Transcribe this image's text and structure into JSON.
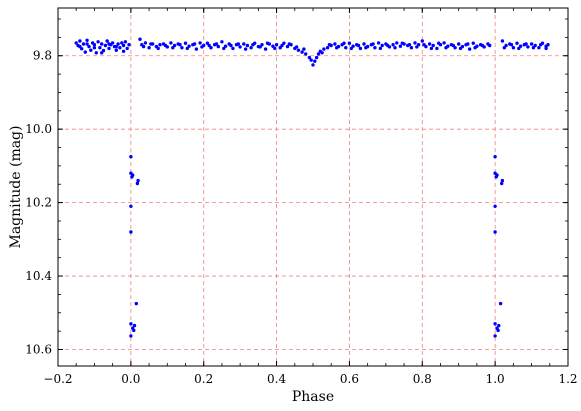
{
  "chart_data": {
    "type": "scatter",
    "xlabel": "Phase",
    "ylabel": "Magnitude (mag)",
    "xlim": [
      -0.2,
      1.2
    ],
    "ylim": [
      10.645,
      9.67
    ],
    "y_inverted": true,
    "grid": true,
    "colors": {
      "points": "#0000ff",
      "grid": "#f08080"
    },
    "xticks": [
      -0.2,
      0.0,
      0.2,
      0.4,
      0.6,
      0.8,
      1.0,
      1.2
    ],
    "xtick_labels": [
      "−0.2",
      "0.0",
      "0.2",
      "0.4",
      "0.6",
      "0.8",
      "1.0",
      "1.2"
    ],
    "yticks": [
      9.8,
      10.0,
      10.2,
      10.4,
      10.6
    ],
    "ytick_labels": [
      "9.8",
      "10.0",
      "10.2",
      "10.4",
      "10.6"
    ],
    "series": [
      {
        "color": "#0000ff",
        "points": [
          [
            -0.15,
            9.765
          ],
          [
            -0.145,
            9.772
          ],
          [
            -0.14,
            9.76
          ],
          [
            -0.135,
            9.781
          ],
          [
            -0.13,
            9.768
          ],
          [
            -0.125,
            9.79
          ],
          [
            -0.12,
            9.758
          ],
          [
            -0.115,
            9.775
          ],
          [
            -0.11,
            9.785
          ],
          [
            -0.105,
            9.765
          ],
          [
            -0.1,
            9.77
          ],
          [
            -0.095,
            9.792
          ],
          [
            -0.09,
            9.762
          ],
          [
            -0.085,
            9.778
          ],
          [
            -0.08,
            9.768
          ],
          [
            -0.075,
            9.786
          ],
          [
            -0.07,
            9.772
          ],
          [
            -0.065,
            9.76
          ],
          [
            -0.06,
            9.78
          ],
          [
            -0.055,
            9.77
          ],
          [
            -0.05,
            9.765
          ],
          [
            -0.045,
            9.775
          ],
          [
            -0.04,
            9.785
          ],
          [
            -0.035,
            9.768
          ],
          [
            -0.03,
            9.778
          ],
          [
            -0.025,
            9.765
          ],
          [
            -0.02,
            9.772
          ],
          [
            -0.015,
            9.762
          ],
          [
            -0.01,
            9.78
          ],
          [
            -0.005,
            9.77
          ],
          [
            0.025,
            9.755
          ],
          [
            0.03,
            9.77
          ],
          [
            0.04,
            9.765
          ],
          [
            0.05,
            9.778
          ],
          [
            0.06,
            9.768
          ],
          [
            0.07,
            9.775
          ],
          [
            0.08,
            9.77
          ],
          [
            0.09,
            9.768
          ],
          [
            0.1,
            9.776
          ],
          [
            0.11,
            9.765
          ],
          [
            0.12,
            9.772
          ],
          [
            0.13,
            9.768
          ],
          [
            0.14,
            9.778
          ],
          [
            0.15,
            9.766
          ],
          [
            0.16,
            9.774
          ],
          [
            0.17,
            9.77
          ],
          [
            0.18,
            9.782
          ],
          [
            0.19,
            9.765
          ],
          [
            0.2,
            9.772
          ],
          [
            0.21,
            9.766
          ],
          [
            0.22,
            9.778
          ],
          [
            0.23,
            9.77
          ],
          [
            0.24,
            9.775
          ],
          [
            0.25,
            9.762
          ],
          [
            0.26,
            9.774
          ],
          [
            0.27,
            9.768
          ],
          [
            0.28,
            9.78
          ],
          [
            0.29,
            9.77
          ],
          [
            0.3,
            9.776
          ],
          [
            0.31,
            9.768
          ],
          [
            0.32,
            9.772
          ],
          [
            0.33,
            9.778
          ],
          [
            0.34,
            9.766
          ],
          [
            0.35,
            9.775
          ],
          [
            0.36,
            9.77
          ],
          [
            0.37,
            9.782
          ],
          [
            0.38,
            9.768
          ],
          [
            0.39,
            9.774
          ],
          [
            0.4,
            9.77
          ],
          [
            0.41,
            9.778
          ],
          [
            0.42,
            9.766
          ],
          [
            0.43,
            9.775
          ],
          [
            0.44,
            9.77
          ],
          [
            0.45,
            9.78
          ],
          [
            0.46,
            9.785
          ],
          [
            0.47,
            9.79
          ],
          [
            0.48,
            9.795
          ],
          [
            0.49,
            9.805
          ],
          [
            0.495,
            9.812
          ],
          [
            0.5,
            9.825
          ],
          [
            0.505,
            9.815
          ],
          [
            0.51,
            9.805
          ],
          [
            0.515,
            9.795
          ],
          [
            0.52,
            9.788
          ],
          [
            0.53,
            9.782
          ],
          [
            0.54,
            9.778
          ],
          [
            0.55,
            9.772
          ],
          [
            0.56,
            9.768
          ],
          [
            0.57,
            9.775
          ],
          [
            0.58,
            9.77
          ],
          [
            0.59,
            9.778
          ],
          [
            0.6,
            9.766
          ],
          [
            0.61,
            9.774
          ],
          [
            0.62,
            9.77
          ],
          [
            0.63,
            9.78
          ],
          [
            0.64,
            9.768
          ],
          [
            0.65,
            9.775
          ],
          [
            0.66,
            9.77
          ],
          [
            0.67,
            9.778
          ],
          [
            0.68,
            9.765
          ],
          [
            0.69,
            9.772
          ],
          [
            0.7,
            9.768
          ],
          [
            0.71,
            9.776
          ],
          [
            0.72,
            9.77
          ],
          [
            0.73,
            9.765
          ],
          [
            0.74,
            9.774
          ],
          [
            0.75,
            9.768
          ],
          [
            0.76,
            9.772
          ],
          [
            0.77,
            9.778
          ],
          [
            0.78,
            9.765
          ],
          [
            0.79,
            9.77
          ],
          [
            0.8,
            9.76
          ],
          [
            0.81,
            9.775
          ],
          [
            0.82,
            9.768
          ],
          [
            0.83,
            9.772
          ],
          [
            0.84,
            9.78
          ],
          [
            0.85,
            9.77
          ],
          [
            0.86,
            9.765
          ],
          [
            0.87,
            9.774
          ],
          [
            0.88,
            9.77
          ],
          [
            0.89,
            9.778
          ],
          [
            0.9,
            9.768
          ],
          [
            0.91,
            9.775
          ],
          [
            0.92,
            9.77
          ],
          [
            0.93,
            9.782
          ],
          [
            0.94,
            9.766
          ],
          [
            0.95,
            9.774
          ],
          [
            0.96,
            9.77
          ],
          [
            0.97,
            9.776
          ],
          [
            0.98,
            9.768
          ],
          [
            0.985,
            9.772
          ],
          [
            1.02,
            9.76
          ],
          [
            1.03,
            9.772
          ],
          [
            1.04,
            9.768
          ],
          [
            1.05,
            9.778
          ],
          [
            1.06,
            9.766
          ],
          [
            1.07,
            9.774
          ],
          [
            1.08,
            9.77
          ],
          [
            1.09,
            9.776
          ],
          [
            1.1,
            9.768
          ],
          [
            1.11,
            9.772
          ],
          [
            1.12,
            9.778
          ],
          [
            1.13,
            9.766
          ],
          [
            1.14,
            9.774
          ],
          [
            1.145,
            9.77
          ],
          [
            -0.14,
            9.775
          ],
          [
            -0.12,
            9.768
          ],
          [
            -0.1,
            9.778
          ],
          [
            -0.08,
            9.792
          ],
          [
            -0.06,
            9.768
          ],
          [
            -0.04,
            9.775
          ],
          [
            -0.02,
            9.788
          ],
          [
            0.035,
            9.775
          ],
          [
            0.055,
            9.768
          ],
          [
            0.075,
            9.78
          ],
          [
            0.095,
            9.772
          ],
          [
            0.115,
            9.778
          ],
          [
            0.135,
            9.77
          ],
          [
            0.155,
            9.78
          ],
          [
            0.175,
            9.768
          ],
          [
            0.195,
            9.776
          ],
          [
            0.215,
            9.772
          ],
          [
            0.235,
            9.768
          ],
          [
            0.255,
            9.78
          ],
          [
            0.275,
            9.772
          ],
          [
            0.295,
            9.768
          ],
          [
            0.315,
            9.782
          ],
          [
            0.335,
            9.77
          ],
          [
            0.355,
            9.776
          ],
          [
            0.375,
            9.766
          ],
          [
            0.395,
            9.78
          ],
          [
            0.415,
            9.772
          ],
          [
            0.435,
            9.768
          ],
          [
            0.455,
            9.776
          ],
          [
            0.475,
            9.782
          ],
          [
            0.525,
            9.792
          ],
          [
            0.545,
            9.77
          ],
          [
            0.565,
            9.778
          ],
          [
            0.585,
            9.766
          ],
          [
            0.605,
            9.78
          ],
          [
            0.625,
            9.772
          ],
          [
            0.645,
            9.778
          ],
          [
            0.665,
            9.768
          ],
          [
            0.685,
            9.78
          ],
          [
            0.705,
            9.772
          ],
          [
            0.725,
            9.778
          ],
          [
            0.745,
            9.766
          ],
          [
            0.765,
            9.77
          ],
          [
            0.785,
            9.776
          ],
          [
            0.805,
            9.77
          ],
          [
            0.825,
            9.78
          ],
          [
            0.845,
            9.766
          ],
          [
            0.865,
            9.778
          ],
          [
            0.885,
            9.772
          ],
          [
            0.905,
            9.78
          ],
          [
            0.925,
            9.768
          ],
          [
            0.945,
            9.778
          ],
          [
            0.965,
            9.772
          ],
          [
            1.025,
            9.778
          ],
          [
            1.045,
            9.77
          ],
          [
            1.065,
            9.78
          ],
          [
            1.085,
            9.768
          ],
          [
            1.105,
            9.778
          ],
          [
            1.125,
            9.77
          ],
          [
            1.14,
            9.78
          ],
          [
            0.0,
            10.075
          ],
          [
            0.0,
            10.12
          ],
          [
            0.003,
            10.13
          ],
          [
            0.0,
            10.21
          ],
          [
            0.0,
            10.28
          ],
          [
            0.005,
            10.125
          ],
          [
            0.02,
            10.14
          ],
          [
            0.018,
            10.148
          ],
          [
            0.015,
            10.475
          ],
          [
            0.0,
            10.53
          ],
          [
            0.005,
            10.542
          ],
          [
            0.008,
            10.548
          ],
          [
            0.01,
            10.535
          ],
          [
            0.0,
            10.563
          ],
          [
            1.0,
            10.075
          ],
          [
            1.0,
            10.12
          ],
          [
            1.003,
            10.13
          ],
          [
            1.0,
            10.21
          ],
          [
            1.0,
            10.28
          ],
          [
            1.005,
            10.125
          ],
          [
            1.02,
            10.14
          ],
          [
            1.018,
            10.148
          ],
          [
            1.015,
            10.475
          ],
          [
            1.0,
            10.53
          ],
          [
            1.005,
            10.542
          ],
          [
            1.008,
            10.548
          ],
          [
            1.01,
            10.535
          ],
          [
            1.0,
            10.563
          ]
        ]
      }
    ]
  }
}
